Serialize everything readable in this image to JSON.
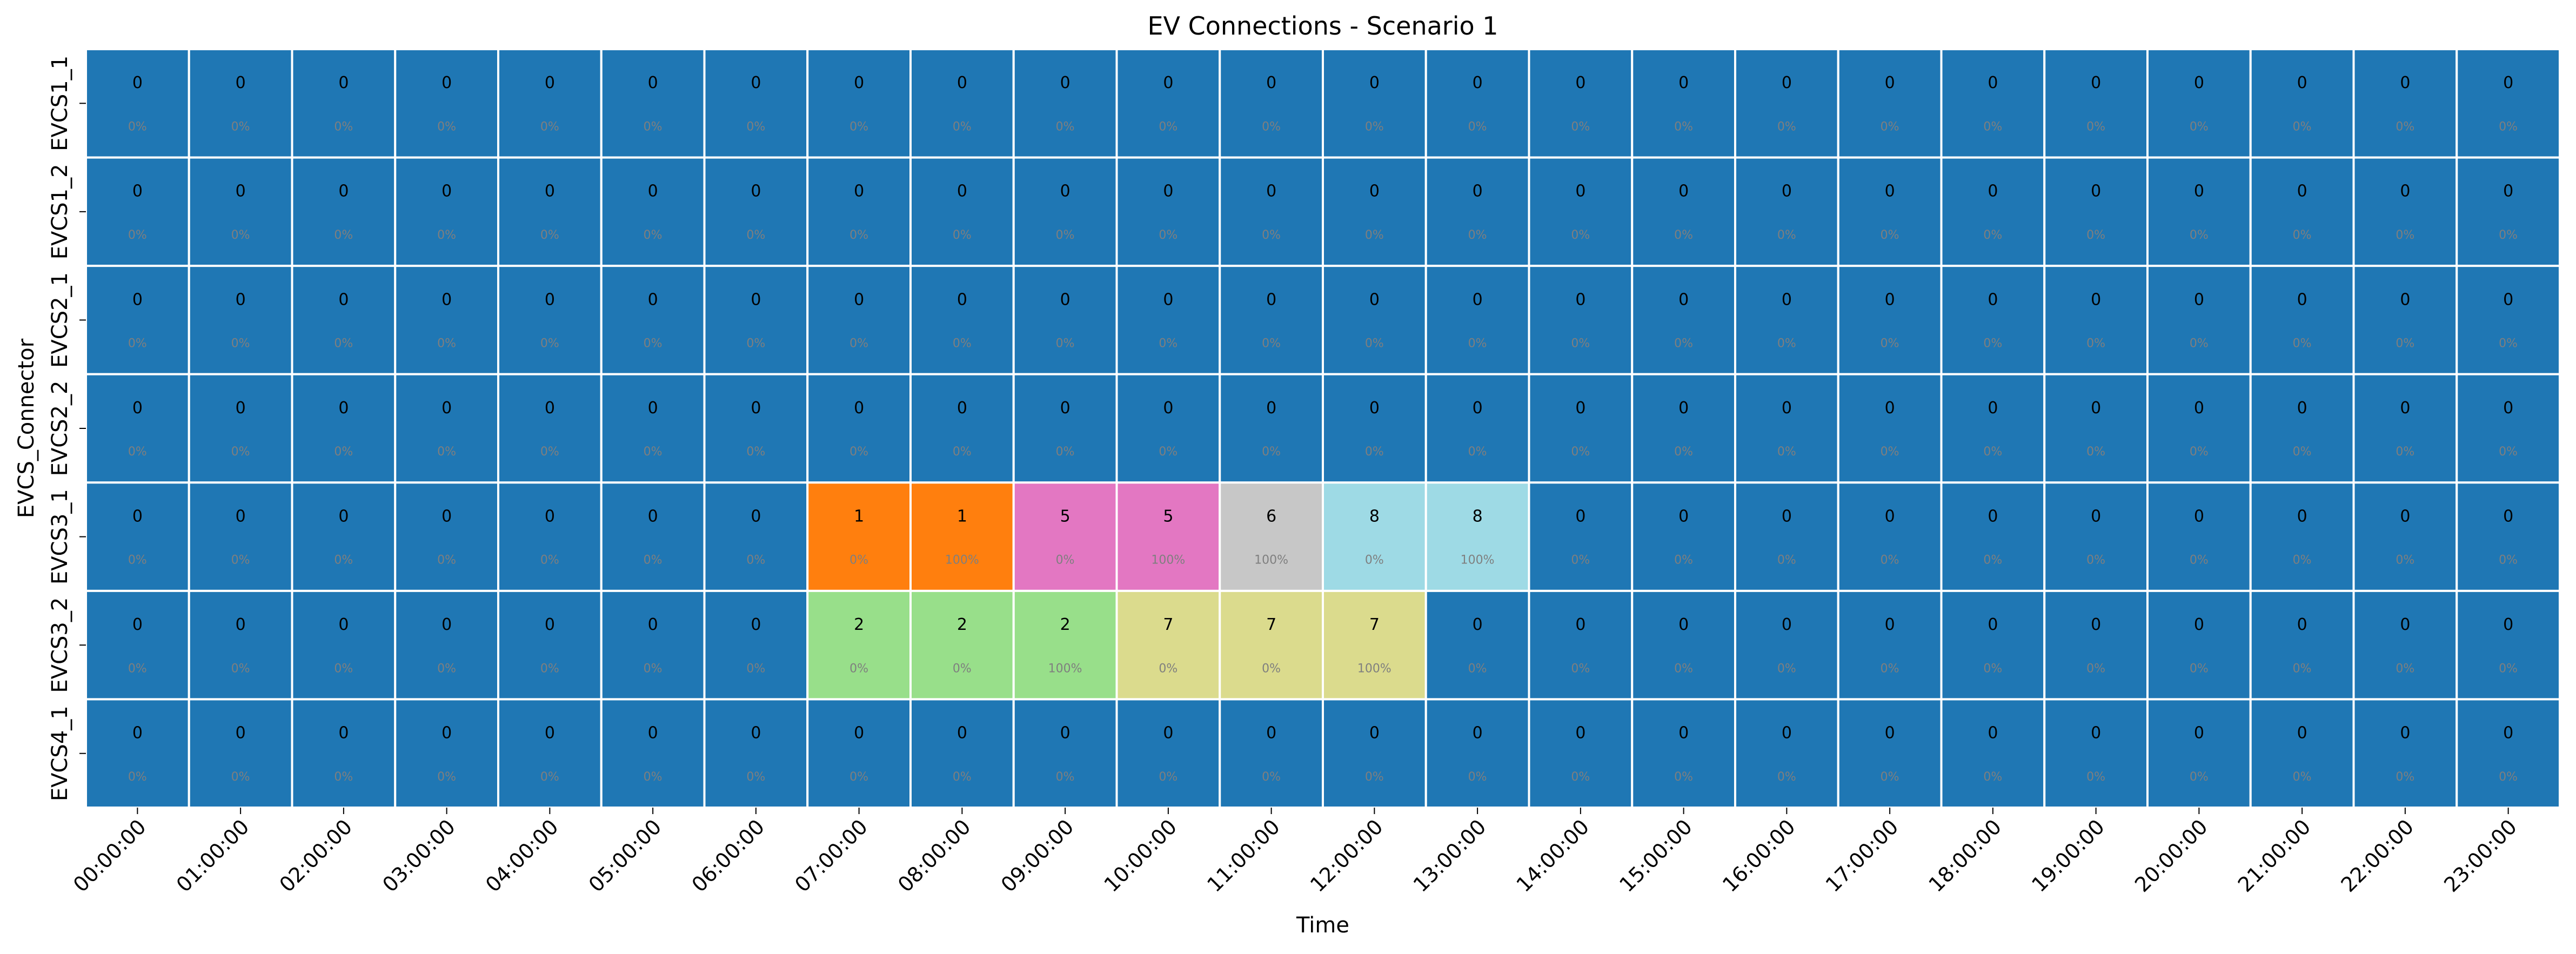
{
  "chart_data": {
    "type": "heatmap",
    "title": "EV Connections - Scenario 1",
    "xlabel": "Time",
    "ylabel": "EVCS_Connector",
    "x": [
      "00:00:00",
      "01:00:00",
      "02:00:00",
      "03:00:00",
      "04:00:00",
      "05:00:00",
      "06:00:00",
      "07:00:00",
      "08:00:00",
      "09:00:00",
      "10:00:00",
      "11:00:00",
      "12:00:00",
      "13:00:00",
      "14:00:00",
      "15:00:00",
      "16:00:00",
      "17:00:00",
      "18:00:00",
      "19:00:00",
      "20:00:00",
      "21:00:00",
      "22:00:00",
      "23:00:00"
    ],
    "y": [
      "EVCS1_1",
      "EVCS1_2",
      "EVCS2_1",
      "EVCS2_2",
      "EVCS3_1",
      "EVCS3_2",
      "EVCS4_1"
    ],
    "values": [
      [
        0,
        0,
        0,
        0,
        0,
        0,
        0,
        0,
        0,
        0,
        0,
        0,
        0,
        0,
        0,
        0,
        0,
        0,
        0,
        0,
        0,
        0,
        0,
        0
      ],
      [
        0,
        0,
        0,
        0,
        0,
        0,
        0,
        0,
        0,
        0,
        0,
        0,
        0,
        0,
        0,
        0,
        0,
        0,
        0,
        0,
        0,
        0,
        0,
        0
      ],
      [
        0,
        0,
        0,
        0,
        0,
        0,
        0,
        0,
        0,
        0,
        0,
        0,
        0,
        0,
        0,
        0,
        0,
        0,
        0,
        0,
        0,
        0,
        0,
        0
      ],
      [
        0,
        0,
        0,
        0,
        0,
        0,
        0,
        0,
        0,
        0,
        0,
        0,
        0,
        0,
        0,
        0,
        0,
        0,
        0,
        0,
        0,
        0,
        0,
        0
      ],
      [
        0,
        0,
        0,
        0,
        0,
        0,
        0,
        1,
        1,
        5,
        5,
        6,
        8,
        8,
        0,
        0,
        0,
        0,
        0,
        0,
        0,
        0,
        0,
        0
      ],
      [
        0,
        0,
        0,
        0,
        0,
        0,
        0,
        2,
        2,
        2,
        7,
        7,
        7,
        0,
        0,
        0,
        0,
        0,
        0,
        0,
        0,
        0,
        0,
        0
      ],
      [
        0,
        0,
        0,
        0,
        0,
        0,
        0,
        0,
        0,
        0,
        0,
        0,
        0,
        0,
        0,
        0,
        0,
        0,
        0,
        0,
        0,
        0,
        0,
        0
      ]
    ],
    "percent_labels": [
      [
        "0%",
        "0%",
        "0%",
        "0%",
        "0%",
        "0%",
        "0%",
        "0%",
        "0%",
        "0%",
        "0%",
        "0%",
        "0%",
        "0%",
        "0%",
        "0%",
        "0%",
        "0%",
        "0%",
        "0%",
        "0%",
        "0%",
        "0%",
        "0%"
      ],
      [
        "0%",
        "0%",
        "0%",
        "0%",
        "0%",
        "0%",
        "0%",
        "0%",
        "0%",
        "0%",
        "0%",
        "0%",
        "0%",
        "0%",
        "0%",
        "0%",
        "0%",
        "0%",
        "0%",
        "0%",
        "0%",
        "0%",
        "0%",
        "0%"
      ],
      [
        "0%",
        "0%",
        "0%",
        "0%",
        "0%",
        "0%",
        "0%",
        "0%",
        "0%",
        "0%",
        "0%",
        "0%",
        "0%",
        "0%",
        "0%",
        "0%",
        "0%",
        "0%",
        "0%",
        "0%",
        "0%",
        "0%",
        "0%",
        "0%"
      ],
      [
        "0%",
        "0%",
        "0%",
        "0%",
        "0%",
        "0%",
        "0%",
        "0%",
        "0%",
        "0%",
        "0%",
        "0%",
        "0%",
        "0%",
        "0%",
        "0%",
        "0%",
        "0%",
        "0%",
        "0%",
        "0%",
        "0%",
        "0%",
        "0%"
      ],
      [
        "0%",
        "0%",
        "0%",
        "0%",
        "0%",
        "0%",
        "0%",
        "0%",
        "100%",
        "0%",
        "100%",
        "100%",
        "0%",
        "100%",
        "0%",
        "0%",
        "0%",
        "0%",
        "0%",
        "0%",
        "0%",
        "0%",
        "0%",
        "0%"
      ],
      [
        "0%",
        "0%",
        "0%",
        "0%",
        "0%",
        "0%",
        "0%",
        "0%",
        "0%",
        "100%",
        "0%",
        "0%",
        "100%",
        "0%",
        "0%",
        "0%",
        "0%",
        "0%",
        "0%",
        "0%",
        "0%",
        "0%",
        "0%",
        "0%"
      ],
      [
        "0%",
        "0%",
        "0%",
        "0%",
        "0%",
        "0%",
        "0%",
        "0%",
        "0%",
        "0%",
        "0%",
        "0%",
        "0%",
        "0%",
        "0%",
        "0%",
        "0%",
        "0%",
        "0%",
        "0%",
        "0%",
        "0%",
        "0%",
        "0%"
      ]
    ],
    "value_colors": {
      "0": "#1f77b4",
      "1": "#ff7f0e",
      "2": "#98df8a",
      "5": "#e377c2",
      "6": "#c7c7c7",
      "7": "#dbdb8d",
      "8": "#9edae5"
    },
    "grid": true,
    "legend": "none"
  }
}
